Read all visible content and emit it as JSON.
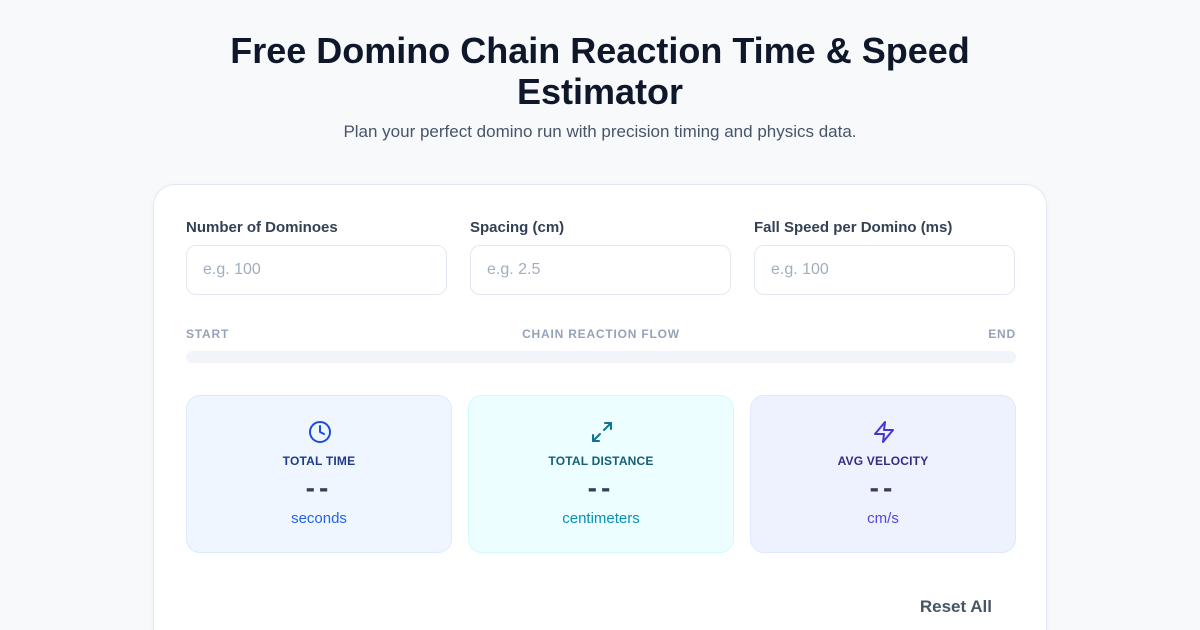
{
  "header": {
    "title": "Free Domino Chain Reaction Time & Speed Estimator",
    "subtitle": "Plan your perfect domino run with precision timing and physics data."
  },
  "inputs": [
    {
      "label": "Number of Dominoes",
      "value": "",
      "placeholder": "e.g. 100"
    },
    {
      "label": "Spacing (cm)",
      "value": "",
      "placeholder": "e.g. 2.5"
    },
    {
      "label": "Fall Speed per Domino (ms)",
      "value": "",
      "placeholder": "e.g. 100"
    }
  ],
  "flow": {
    "start_label": "START",
    "middle_label": "CHAIN REACTION FLOW",
    "end_label": "END",
    "progress": 0
  },
  "stats": [
    {
      "label": "TOTAL TIME",
      "value": "--",
      "unit": "seconds",
      "icon": "clock-icon"
    },
    {
      "label": "TOTAL DISTANCE",
      "value": "--",
      "unit": "centimeters",
      "icon": "expand-arrows-icon"
    },
    {
      "label": "AVG VELOCITY",
      "value": "--",
      "unit": "cm/s",
      "icon": "lightning-icon"
    }
  ],
  "actions": {
    "reset_label": "Reset All"
  },
  "colors": {
    "time_accent": "#2563eb",
    "distance_accent": "#0891b2",
    "velocity_accent": "#4f46e5"
  }
}
